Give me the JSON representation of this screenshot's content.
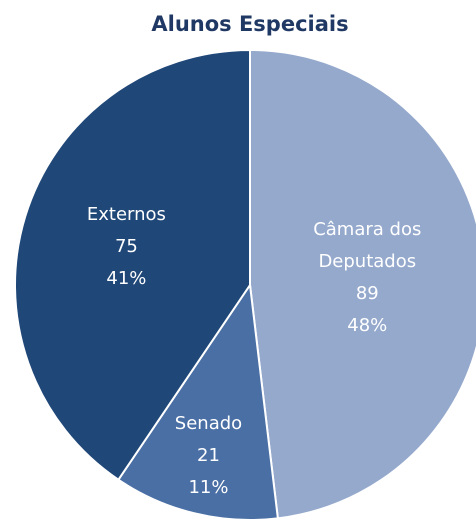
{
  "chart_data": {
    "type": "pie",
    "title": "Alunos Especiais",
    "categories": [
      "Câmara dos Deputados",
      "Senado",
      "Externos"
    ],
    "values": [
      89,
      21,
      75
    ],
    "percent_labels": [
      "48%",
      "11%",
      "41%"
    ],
    "colors": [
      "#95a9cd",
      "#4a6fa5",
      "#1f4778"
    ]
  }
}
